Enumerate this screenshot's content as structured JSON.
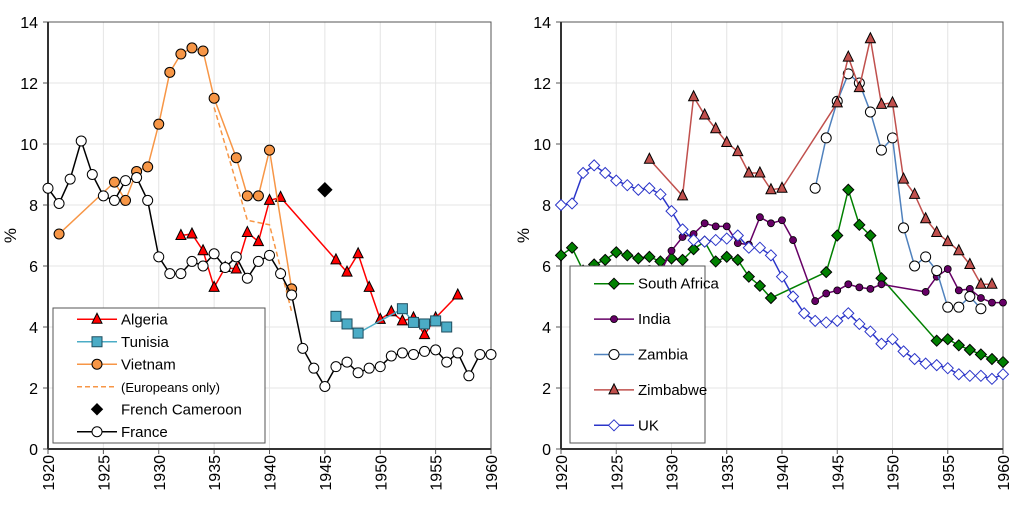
{
  "chart_data": [
    {
      "type": "line",
      "ylabel": "%",
      "xlabel": "",
      "xlim": [
        1920,
        1960
      ],
      "ylim": [
        0,
        14
      ],
      "xticks": [
        "1920",
        "1925",
        "1930",
        "1935",
        "1940",
        "1945",
        "1950",
        "1955",
        "1960"
      ],
      "yticks": [
        "0",
        "2",
        "4",
        "6",
        "8",
        "10",
        "12",
        "14"
      ],
      "grid": true,
      "legend": "bottom-left",
      "series": [
        {
          "name": "Algeria",
          "color": "#ff0000",
          "marker": "triangle",
          "fill": "#ff0000",
          "x": [
            1932,
            1933,
            1934,
            1935,
            1936,
            1937,
            1938,
            1939,
            1940,
            1941,
            1946,
            1947,
            1948,
            1949,
            1950,
            1951,
            1952,
            1953,
            1954,
            1955,
            1957
          ],
          "y": [
            7.0,
            7.05,
            6.5,
            5.3,
            5.95,
            5.9,
            7.1,
            6.8,
            8.15,
            8.25,
            6.2,
            5.8,
            6.4,
            5.3,
            4.25,
            4.5,
            4.2,
            4.3,
            3.75,
            4.3,
            5.05
          ]
        },
        {
          "name": "Tunisia",
          "color": "#4bacc6",
          "marker": "square",
          "fill": "#4bacc6",
          "x": [
            1946,
            1947,
            1948,
            1952,
            1953,
            1954,
            1955,
            1956
          ],
          "y": [
            4.35,
            4.1,
            3.8,
            4.6,
            4.15,
            4.1,
            4.2,
            4.0
          ]
        },
        {
          "name": "Vietnam",
          "color": "#f79646",
          "marker": "circle",
          "fill": "#f79646",
          "x": [
            1921,
            1926,
            1927,
            1928,
            1929,
            1930,
            1931,
            1932,
            1933,
            1934,
            1935,
            1937,
            1938,
            1939,
            1940,
            1942
          ],
          "y": [
            7.05,
            8.75,
            8.15,
            9.1,
            9.25,
            10.65,
            12.35,
            12.95,
            13.15,
            13.05,
            11.5,
            9.55,
            8.3,
            8.3,
            9.8,
            5.25
          ]
        },
        {
          "name": "(Europeans only)",
          "color": "#f79646",
          "marker": "none",
          "dashed": true,
          "x": [
            1935,
            1938,
            1940,
            1942
          ],
          "y": [
            11.2,
            7.5,
            7.35,
            4.5
          ]
        },
        {
          "name": "French Cameroon",
          "color": "#000000",
          "marker": "diamond",
          "fill": "#000000",
          "noline": true,
          "x": [
            1945
          ],
          "y": [
            8.5
          ]
        },
        {
          "name": "France",
          "color": "#000000",
          "marker": "circle",
          "fill": "#ffffff",
          "x": [
            1920,
            1921,
            1922,
            1923,
            1924,
            1925,
            1926,
            1927,
            1928,
            1929,
            1930,
            1931,
            1932,
            1933,
            1934,
            1935,
            1936,
            1937,
            1938,
            1939,
            1940,
            1941,
            1942,
            1943,
            1944,
            1945,
            1946,
            1947,
            1948,
            1949,
            1950,
            1951,
            1952,
            1953,
            1954,
            1955,
            1956,
            1957,
            1958,
            1959,
            1960
          ],
          "y": [
            8.55,
            8.05,
            8.85,
            10.1,
            9.0,
            8.3,
            8.15,
            8.8,
            8.9,
            8.15,
            6.3,
            5.75,
            5.75,
            6.15,
            6.0,
            6.4,
            5.95,
            6.3,
            5.6,
            6.15,
            6.35,
            5.75,
            5.05,
            3.3,
            2.65,
            2.05,
            2.7,
            2.85,
            2.5,
            2.65,
            2.7,
            3.05,
            3.15,
            3.1,
            3.2,
            3.25,
            2.85,
            3.15,
            2.4,
            3.1,
            3.1
          ]
        }
      ]
    },
    {
      "type": "line",
      "ylabel": "%",
      "xlabel": "",
      "xlim": [
        1920,
        1960
      ],
      "ylim": [
        0,
        14
      ],
      "xticks": [
        "1920",
        "1925",
        "1930",
        "1935",
        "1940",
        "1945",
        "1950",
        "1955",
        "1960"
      ],
      "yticks": [
        "0",
        "2",
        "4",
        "6",
        "8",
        "10",
        "12",
        "14"
      ],
      "grid": true,
      "legend": "bottom-left",
      "series": [
        {
          "name": "South Africa",
          "color": "#008000",
          "marker": "diamond",
          "fill": "#008000",
          "x": [
            1920,
            1921,
            1922,
            1923,
            1924,
            1925,
            1926,
            1927,
            1928,
            1929,
            1930,
            1931,
            1932,
            1933,
            1934,
            1935,
            1936,
            1937,
            1938,
            1939,
            1944,
            1945,
            1946,
            1947,
            1948,
            1949,
            1954,
            1955,
            1956,
            1957,
            1958,
            1959,
            1960
          ],
          "y": [
            6.35,
            6.6,
            5.85,
            6.05,
            6.2,
            6.45,
            6.35,
            6.25,
            6.3,
            6.15,
            6.25,
            6.2,
            6.55,
            6.8,
            6.15,
            6.3,
            6.2,
            5.65,
            5.35,
            4.95,
            5.8,
            7.0,
            8.5,
            7.35,
            7.0,
            5.6,
            3.55,
            3.6,
            3.4,
            3.25,
            3.1,
            2.95,
            2.85
          ]
        },
        {
          "name": "India",
          "color": "#660066",
          "marker": "dot",
          "fill": "#660066",
          "x": [
            1922,
            1923,
            1924,
            1925,
            1926,
            1927,
            1928,
            1929,
            1930,
            1931,
            1932,
            1933,
            1934,
            1935,
            1936,
            1937,
            1938,
            1939,
            1940,
            1941,
            1943,
            1944,
            1945,
            1946,
            1947,
            1948,
            1949,
            1953,
            1954,
            1955,
            1956,
            1957,
            1958,
            1959,
            1960
          ],
          "y": [
            5.7,
            5.9,
            5.4,
            5.4,
            5.6,
            5.85,
            5.9,
            5.8,
            6.5,
            6.95,
            7.05,
            7.4,
            7.3,
            7.3,
            6.75,
            6.7,
            7.6,
            7.4,
            7.5,
            6.85,
            4.85,
            5.1,
            5.2,
            5.4,
            5.3,
            5.25,
            5.4,
            5.15,
            5.65,
            5.9,
            5.2,
            5.25,
            4.95,
            4.8,
            4.8
          ]
        },
        {
          "name": "Zambia",
          "color": "#4f81bd",
          "marker": "circle",
          "fill": "#ffffff",
          "x": [
            1943,
            1944,
            1945,
            1946,
            1947,
            1948,
            1949,
            1950,
            1951,
            1952,
            1953,
            1954,
            1955,
            1956,
            1957,
            1958
          ],
          "y": [
            8.55,
            10.2,
            11.4,
            12.3,
            12.0,
            11.05,
            9.8,
            10.2,
            7.25,
            6.0,
            6.3,
            5.85,
            4.65,
            4.65,
            5.0,
            4.6
          ]
        },
        {
          "name": "Zimbabwe",
          "color": "#c0504d",
          "marker": "triangle",
          "fill": "#c0504d",
          "x": [
            1928,
            1931,
            1932,
            1933,
            1934,
            1935,
            1936,
            1937,
            1938,
            1939,
            1940,
            1945,
            1946,
            1947,
            1948,
            1949,
            1950,
            1951,
            1952,
            1953,
            1954,
            1955,
            1956,
            1957,
            1958,
            1959
          ],
          "y": [
            9.5,
            8.3,
            11.55,
            10.95,
            10.5,
            10.05,
            9.75,
            9.05,
            9.05,
            8.5,
            8.55,
            11.35,
            12.85,
            11.85,
            13.45,
            11.3,
            11.35,
            8.85,
            8.35,
            7.55,
            7.1,
            6.8,
            6.5,
            6.05,
            5.4,
            5.4
          ]
        },
        {
          "name": "UK",
          "color": "#2b35c9",
          "marker": "diamond",
          "fill": "#ffffff",
          "x": [
            1920,
            1921,
            1922,
            1923,
            1924,
            1925,
            1926,
            1927,
            1928,
            1929,
            1930,
            1931,
            1932,
            1933,
            1934,
            1935,
            1936,
            1937,
            1938,
            1939,
            1940,
            1941,
            1942,
            1943,
            1944,
            1945,
            1946,
            1947,
            1948,
            1949,
            1950,
            1951,
            1952,
            1953,
            1954,
            1955,
            1956,
            1957,
            1958,
            1959,
            1960
          ],
          "y": [
            8.0,
            8.05,
            9.05,
            9.3,
            9.05,
            8.8,
            8.65,
            8.5,
            8.55,
            8.35,
            7.8,
            7.2,
            6.85,
            6.8,
            6.85,
            6.9,
            7.0,
            6.6,
            6.6,
            6.35,
            5.65,
            5.0,
            4.45,
            4.2,
            4.15,
            4.2,
            4.45,
            4.1,
            3.85,
            3.45,
            3.6,
            3.2,
            2.95,
            2.8,
            2.75,
            2.65,
            2.45,
            2.4,
            2.4,
            2.3,
            2.45
          ]
        }
      ]
    }
  ]
}
